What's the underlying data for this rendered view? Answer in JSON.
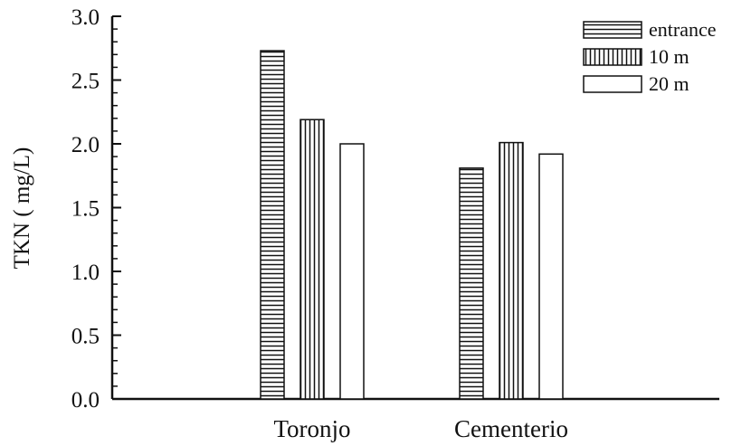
{
  "chart_data": {
    "type": "bar",
    "categories": [
      "Toronjo",
      "Cementerio"
    ],
    "series": [
      {
        "name": "entrance",
        "values": [
          2.73,
          1.81
        ],
        "pattern": "horizontal-stripes"
      },
      {
        "name": "10 m",
        "values": [
          2.19,
          2.01
        ],
        "pattern": "vertical-stripes"
      },
      {
        "name": "20 m",
        "values": [
          2.0,
          1.92
        ],
        "pattern": "solid-white"
      }
    ],
    "title": "",
    "xlabel": "",
    "ylabel": "TKN ( mg/L)",
    "ylim": [
      0,
      3.0
    ],
    "yticks": [
      "0.0",
      "0.5",
      "1.0",
      "1.5",
      "2.0",
      "2.5",
      "3.0"
    ],
    "legend_position": "top-right",
    "grid": false,
    "colors": {
      "stroke": "#111111",
      "fill": "#ffffff"
    }
  }
}
